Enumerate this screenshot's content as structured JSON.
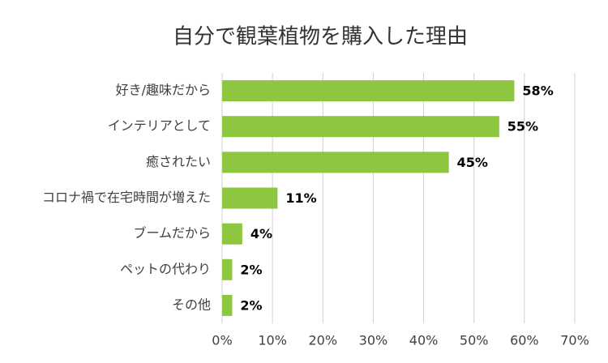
{
  "chart_data": {
    "type": "bar",
    "orientation": "horizontal",
    "title": "自分で観葉植物を購入した理由",
    "categories": [
      "好き/趣味だから",
      "インテリアとして",
      "癒されたい",
      "コロナ禍で在宅時間が増えた",
      "ブームだから",
      "ペットの代わり",
      "その他"
    ],
    "values": [
      58,
      55,
      45,
      11,
      4,
      2,
      2
    ],
    "value_labels": [
      "58%",
      "55%",
      "45%",
      "11%",
      "4%",
      "2%",
      "2%"
    ],
    "color": "#8dc63f",
    "xlim": [
      0,
      70
    ],
    "xticks": [
      {
        "value": 0,
        "label": "0%"
      },
      {
        "value": 10,
        "label": "10%"
      },
      {
        "value": 20,
        "label": "20%"
      },
      {
        "value": 30,
        "label": "30%"
      },
      {
        "value": 40,
        "label": "40%"
      },
      {
        "value": 50,
        "label": "50%"
      },
      {
        "value": 60,
        "label": "60%"
      },
      {
        "value": 70,
        "label": "70%"
      }
    ],
    "grid": true
  }
}
